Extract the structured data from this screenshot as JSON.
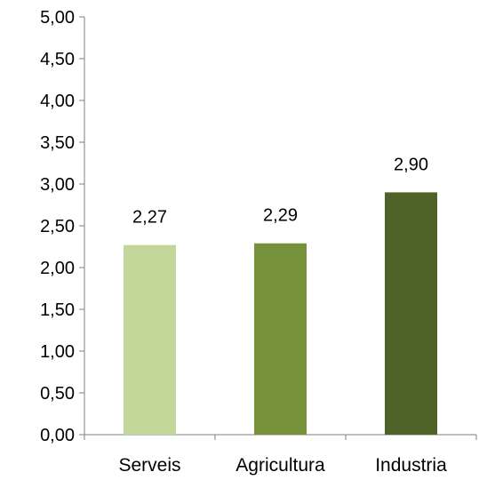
{
  "chart_data": {
    "type": "bar",
    "title": "",
    "xlabel": "",
    "ylabel": "",
    "categories": [
      "Serveis",
      "Agricultura",
      "Industria"
    ],
    "values": [
      2.27,
      2.29,
      2.9
    ],
    "value_labels": [
      "2,27",
      "2,29",
      "2,90"
    ],
    "ylim": [
      0,
      5
    ],
    "y_ticks": [
      0,
      0.5,
      1,
      1.5,
      2,
      2.5,
      3,
      3.5,
      4,
      4.5,
      5
    ],
    "y_tick_labels": [
      "0,00",
      "0,50",
      "1,00",
      "1,50",
      "2,00",
      "2,50",
      "3,00",
      "3,50",
      "4,00",
      "4,50",
      "5,00"
    ],
    "grid": false,
    "legend": "none",
    "colors": [
      "#c4d79b",
      "#76933c",
      "#4f6228"
    ]
  }
}
